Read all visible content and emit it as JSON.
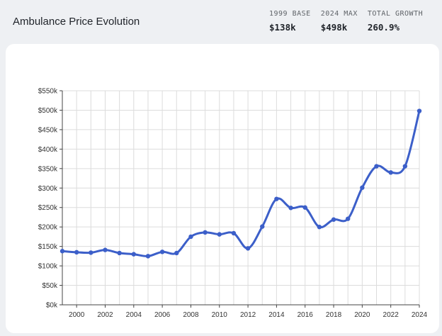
{
  "header": {
    "title": "Ambulance Price Evolution"
  },
  "stats": [
    {
      "label": "1999 BASE",
      "value": "$138k"
    },
    {
      "label": "2024 MAX",
      "value": "$498k"
    },
    {
      "label": "TOTAL GROWTH",
      "value": "260.9%"
    }
  ],
  "colors": {
    "line": "#3c5fc9",
    "grid": "#dcdcdc"
  },
  "chart_data": {
    "type": "line",
    "title": "",
    "xlabel": "",
    "ylabel": "",
    "xlim": [
      1999,
      2024
    ],
    "ylim": [
      0,
      550000
    ],
    "grid": true,
    "x_ticks": [
      2000,
      2002,
      2004,
      2006,
      2008,
      2010,
      2012,
      2014,
      2016,
      2018,
      2020,
      2022,
      2024
    ],
    "y_ticks": [
      0,
      50000,
      100000,
      150000,
      200000,
      250000,
      300000,
      350000,
      400000,
      450000,
      500000,
      550000
    ],
    "y_tick_labels": [
      "$0k",
      "$50k",
      "$100k",
      "$150k",
      "$200k",
      "$250k",
      "$300k",
      "$350k",
      "$400k",
      "$450k",
      "$500k",
      "$550k"
    ],
    "x": [
      1999,
      2000,
      2001,
      2002,
      2003,
      2004,
      2005,
      2006,
      2007,
      2008,
      2009,
      2010,
      2011,
      2012,
      2013,
      2014,
      2015,
      2016,
      2017,
      2018,
      2019,
      2020,
      2021,
      2022,
      2023,
      2024
    ],
    "series": [
      {
        "values": [
          138000,
          135000,
          134000,
          141000,
          133000,
          130000,
          125000,
          136000,
          133000,
          175000,
          186000,
          181000,
          184000,
          145000,
          201000,
          272000,
          249000,
          250000,
          200000,
          219000,
          221000,
          301000,
          356000,
          340000,
          356000,
          498000
        ]
      }
    ]
  }
}
